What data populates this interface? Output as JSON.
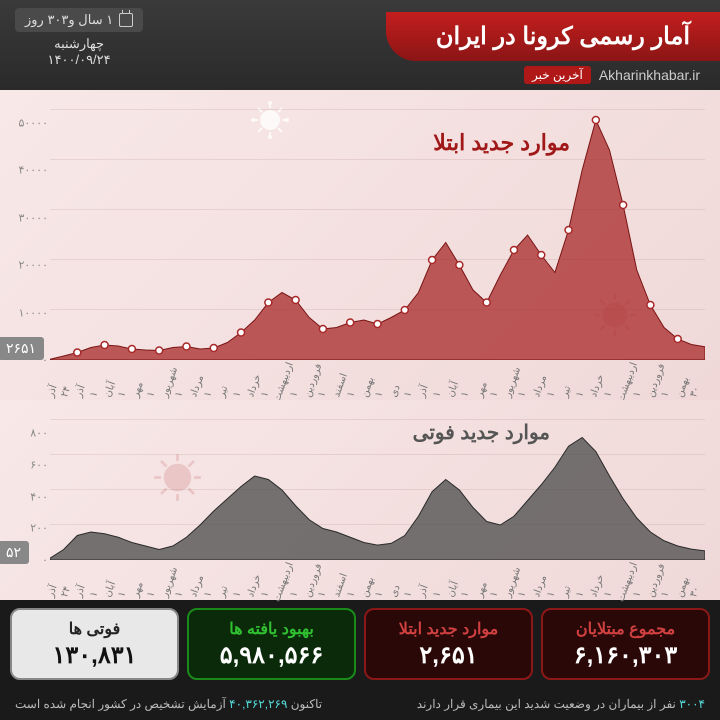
{
  "header": {
    "title": "آمار رسمی کرونا در ایران",
    "source_name": "Akharinkhabar.ir",
    "source_logo": "آخرین خبر",
    "days_elapsed": "۱ سال و۳۰۳ روز",
    "weekday": "چهارشنبه",
    "date": "۱۴۰۰/۰۹/۲۴"
  },
  "chart_cases": {
    "type": "area",
    "title": "موارد جدید ابتلا",
    "title_color": "#a01818",
    "title_fontsize": 22,
    "ylim": [
      0,
      50000
    ],
    "ytick_step": 10000,
    "yticks": [
      "۰",
      "۱۰۰۰۰",
      "۲۰۰۰۰",
      "۳۰۰۰۰",
      "۴۰۰۰۰",
      "۵۰۰۰۰"
    ],
    "fill_color": "#a82828",
    "fill_opacity": 0.75,
    "line_color": "#7a1515",
    "marker_color": "#ffffff",
    "marker_border": "#a82828",
    "background": "#f5e3e3",
    "grid_color": "rgba(150,100,100,0.15)",
    "end_value": "۲۶۵۱",
    "values": [
      150,
      800,
      1500,
      2500,
      3000,
      2800,
      2200,
      2000,
      1900,
      2500,
      2700,
      2200,
      2400,
      3500,
      5500,
      8000,
      11500,
      13500,
      12000,
      8500,
      6200,
      6500,
      7500,
      8000,
      7200,
      8500,
      10000,
      13500,
      20000,
      23500,
      19000,
      14000,
      11500,
      17000,
      22000,
      25000,
      21000,
      17500,
      26000,
      38000,
      48000,
      42000,
      31000,
      18000,
      11000,
      6500,
      4200,
      3100,
      2651
    ],
    "markers_idx": [
      2,
      4,
      6,
      8,
      10,
      12,
      14,
      16,
      18,
      20,
      22,
      24,
      26,
      28,
      30,
      32,
      34,
      36,
      38,
      40,
      42,
      44,
      46
    ],
    "x_labels": [
      "۳۰",
      "بهمن",
      "۱",
      "فروردین",
      "۱",
      "اردیبهشت",
      "۱",
      "خرداد",
      "۱",
      "تیر",
      "۱",
      "مرداد",
      "۱",
      "شهریور",
      "۱",
      "مهر",
      "۱",
      "آبان",
      "۱",
      "آذر",
      "۱",
      "دی",
      "۱",
      "بهمن",
      "۱",
      "اسفند",
      "۱",
      "فروردین",
      "۱",
      "اردیبهشت",
      "۱",
      "خرداد",
      "۱",
      "تیر",
      "۱",
      "مرداد",
      "۱",
      "شهریور",
      "۱",
      "مهر",
      "۱",
      "آبان",
      "۱",
      "آذر",
      "۲۴",
      "آذر"
    ]
  },
  "chart_deaths": {
    "type": "area",
    "title": "موارد جدید فوتی",
    "title_color": "#555555",
    "title_fontsize": 20,
    "ylim": [
      0,
      800
    ],
    "ytick_step": 200,
    "yticks": [
      "۰",
      "۲۰۰",
      "۴۰۰",
      "۶۰۰",
      "۸۰۰"
    ],
    "fill_color": "#4a4a4a",
    "fill_opacity": 0.75,
    "line_color": "#2a2a2a",
    "background": "#f5e3e3",
    "end_value": "۵۲",
    "values": [
      10,
      60,
      140,
      160,
      150,
      130,
      100,
      80,
      60,
      80,
      130,
      200,
      280,
      350,
      420,
      480,
      460,
      400,
      310,
      230,
      180,
      160,
      130,
      100,
      85,
      95,
      140,
      250,
      390,
      460,
      400,
      300,
      220,
      200,
      250,
      340,
      430,
      530,
      650,
      700,
      620,
      480,
      350,
      240,
      160,
      110,
      80,
      62,
      52
    ]
  },
  "stats": [
    {
      "key": "total",
      "label": "مجموع مبتلایان",
      "value": "۶,۱۶۰,۳۰۳",
      "bg": "#2a0808",
      "border": "#8a1818",
      "label_color": "#d04040",
      "value_color": "#ffffff"
    },
    {
      "key": "new",
      "label": "موارد جدید ابتلا",
      "value": "۲,۶۵۱",
      "bg": "#2a0808",
      "border": "#8a1818",
      "label_color": "#d04040",
      "value_color": "#ffffff"
    },
    {
      "key": "recovered",
      "label": "بهبود یافته ها",
      "value": "۵,۹۸۰,۵۶۶",
      "bg": "#0a2a0a",
      "border": "#1a8a1a",
      "label_color": "#30c030",
      "value_color": "#ffffff"
    },
    {
      "key": "deaths",
      "label": "فوتی ها",
      "value": "۱۳۰,۸۳۱",
      "bg": "#e8e8e8",
      "border": "#888",
      "label_color": "#222",
      "value_color": "#111"
    }
  ],
  "footer": {
    "severe_pre": "۳۰۰۴",
    "severe_text": " نفر از بیماران در وضعیت شدید این بیماری قرار دارند",
    "tests_pre": "تاکنون ",
    "tests_num": "۴۰,۳۶۲,۲۶۹",
    "tests_post": " آزمایش تشخیص در کشور انجام شده است"
  }
}
